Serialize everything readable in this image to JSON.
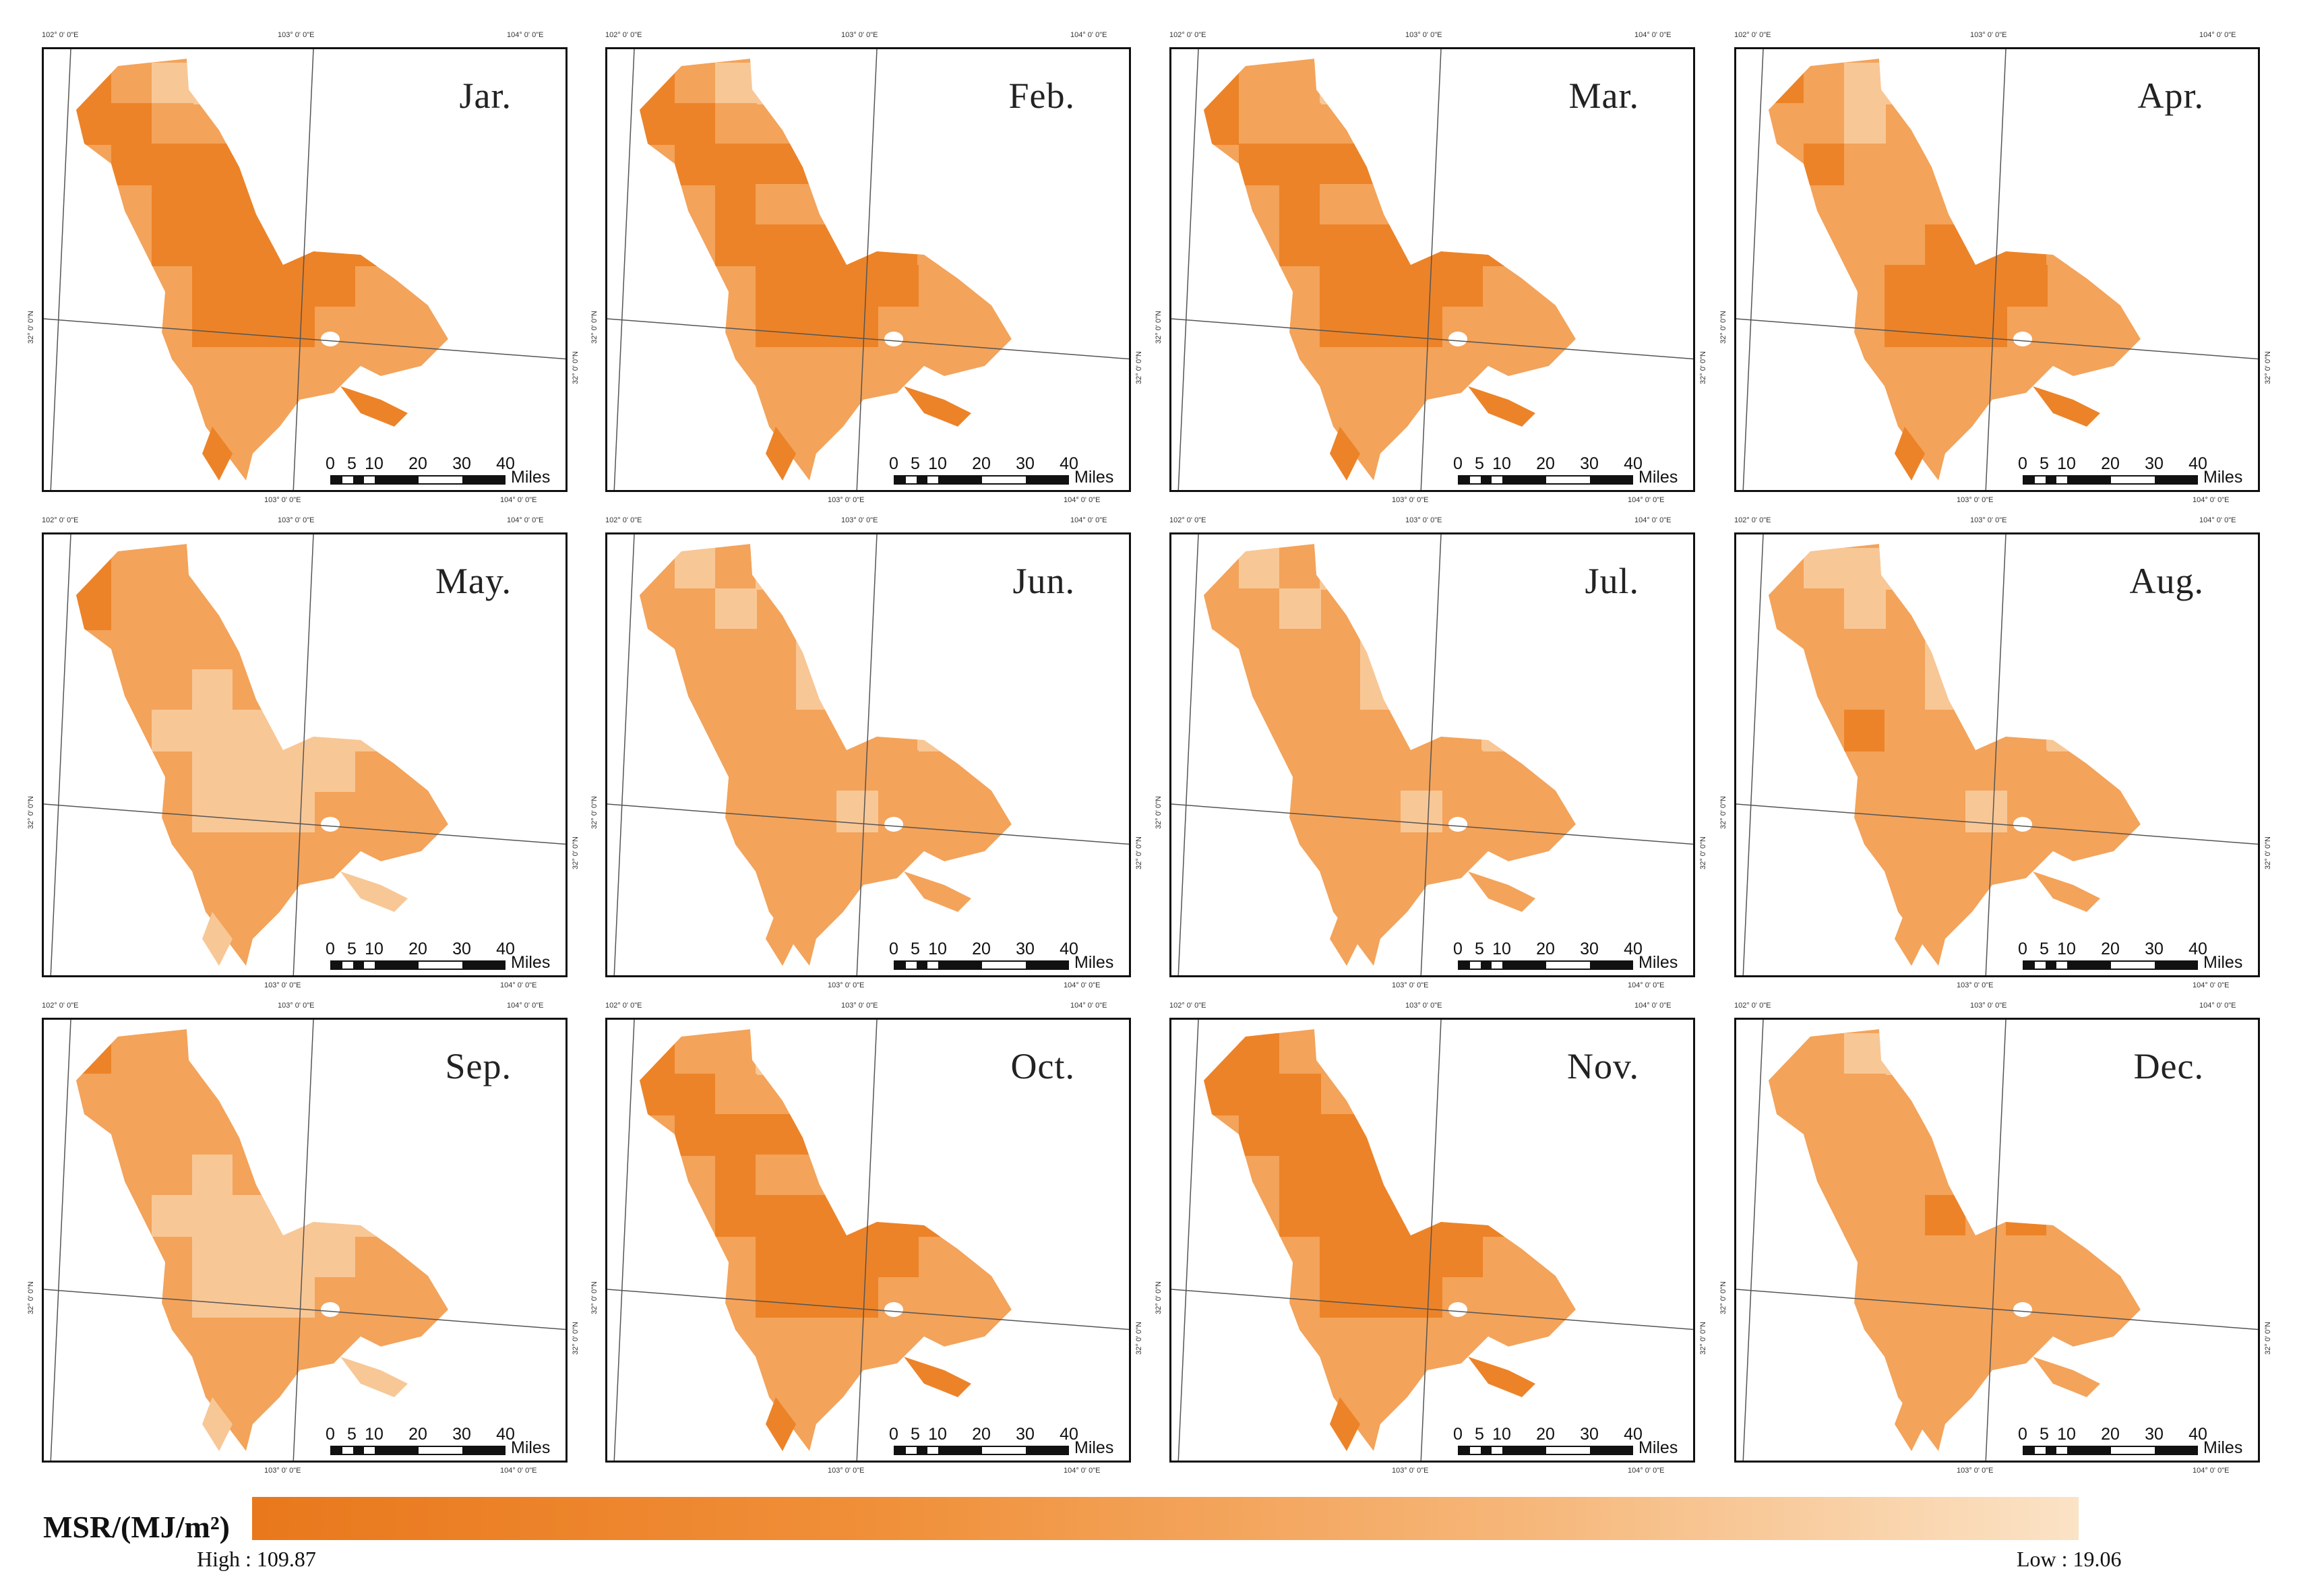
{
  "figure": {
    "panels": [
      {
        "month": "Jar.",
        "pattern": [
          3,
          2,
          1,
          1,
          3,
          3,
          2,
          3,
          3,
          3,
          3,
          3,
          3,
          3,
          3,
          3,
          3,
          3,
          3,
          3,
          3,
          3,
          3,
          3,
          3,
          3,
          3,
          3,
          3,
          3
        ]
      },
      {
        "month": "Feb.",
        "pattern": [
          3,
          2,
          1,
          1,
          3,
          3,
          2,
          3,
          3,
          3,
          3,
          3,
          2,
          2,
          3,
          3,
          2,
          3,
          3,
          3,
          3,
          3,
          2,
          3,
          3,
          3,
          3,
          3,
          3,
          3
        ]
      },
      {
        "month": "Mar.",
        "pattern": [
          3,
          2,
          2,
          1,
          3,
          2,
          2,
          3,
          3,
          3,
          3,
          3,
          2,
          2,
          3,
          3,
          3,
          3,
          3,
          3,
          3,
          3,
          3,
          3,
          3,
          3,
          3,
          3,
          3,
          3
        ]
      },
      {
        "month": "Apr.",
        "pattern": [
          3,
          2,
          1,
          1,
          2,
          2,
          1,
          3,
          2,
          2,
          2,
          2,
          2,
          2,
          3,
          3,
          3,
          2,
          2,
          3,
          3,
          3,
          2,
          3,
          3,
          3,
          3,
          3,
          3,
          3
        ]
      },
      {
        "month": "May.",
        "pattern": [
          3,
          2,
          2,
          2,
          3,
          2,
          2,
          2,
          2,
          2,
          2,
          2,
          1,
          2,
          2,
          2,
          1,
          1,
          1,
          1,
          1,
          1,
          1,
          1,
          1,
          1,
          1,
          1,
          1,
          1
        ]
      },
      {
        "month": "Jun.",
        "pattern": [
          2,
          1,
          2,
          1,
          2,
          2,
          1,
          2,
          2,
          2,
          1,
          2,
          2,
          1,
          3,
          3,
          2,
          2,
          2,
          2,
          2,
          2,
          1,
          2,
          2,
          2,
          2,
          2,
          2,
          1
        ]
      },
      {
        "month": "Jul.",
        "pattern": [
          2,
          1,
          2,
          1,
          2,
          2,
          1,
          2,
          2,
          2,
          1,
          2,
          2,
          1,
          3,
          3,
          2,
          2,
          2,
          2,
          2,
          2,
          1,
          2,
          2,
          2,
          2,
          2,
          2,
          1
        ]
      },
      {
        "month": "Aug.",
        "pattern": [
          2,
          1,
          1,
          1,
          2,
          2,
          1,
          2,
          2,
          2,
          1,
          2,
          2,
          1,
          3,
          3,
          2,
          3,
          2,
          2,
          2,
          2,
          1,
          2,
          2,
          2,
          2,
          2,
          2,
          1
        ]
      },
      {
        "month": "Sep.",
        "pattern": [
          3,
          2,
          2,
          2,
          2,
          2,
          2,
          2,
          2,
          2,
          2,
          2,
          1,
          2,
          2,
          2,
          1,
          1,
          1,
          1,
          1,
          1,
          1,
          1,
          1,
          1,
          1,
          1,
          1,
          1
        ]
      },
      {
        "month": "Oct.",
        "pattern": [
          3,
          2,
          2,
          1,
          3,
          3,
          2,
          3,
          3,
          3,
          3,
          3,
          2,
          2,
          3,
          3,
          2,
          3,
          3,
          3,
          3,
          3,
          3,
          3,
          3,
          3,
          3,
          3,
          3,
          3
        ]
      },
      {
        "month": "Nov.",
        "pattern": [
          3,
          3,
          2,
          2,
          3,
          3,
          3,
          3,
          3,
          3,
          3,
          3,
          3,
          3,
          3,
          3,
          3,
          3,
          3,
          3,
          3,
          3,
          3,
          3,
          3,
          3,
          3,
          3,
          3,
          3
        ]
      },
      {
        "month": "Dec.",
        "pattern": [
          2,
          2,
          1,
          1,
          2,
          2,
          2,
          2,
          2,
          2,
          2,
          2,
          2,
          2,
          3,
          3,
          3,
          2,
          2,
          3,
          2,
          3,
          2,
          2,
          2,
          2,
          2,
          2,
          2,
          2
        ]
      }
    ],
    "scale_ticks": [
      "0",
      "5",
      "10",
      "20",
      "30",
      "40"
    ],
    "scale_units": "Miles",
    "coords": {
      "top_left": "102° 0' 0\"E",
      "top_mid": "103° 0' 0\"E",
      "top_right": "104° 0' 0\"E",
      "side_left": "32° 0' 0\"N",
      "side_right": "32° 0' 0\"N"
    },
    "colors": {
      "level_1": "#f8c796",
      "level_2": "#f3a35a",
      "level_3": "#ec8328",
      "border": "#111111"
    }
  },
  "legend": {
    "title": "MSR/(MJ/m²)",
    "high_label": "High : 109.87",
    "low_label": "Low : 19.06",
    "high_color": "#e9781c",
    "low_color": "#fbe3c6"
  }
}
